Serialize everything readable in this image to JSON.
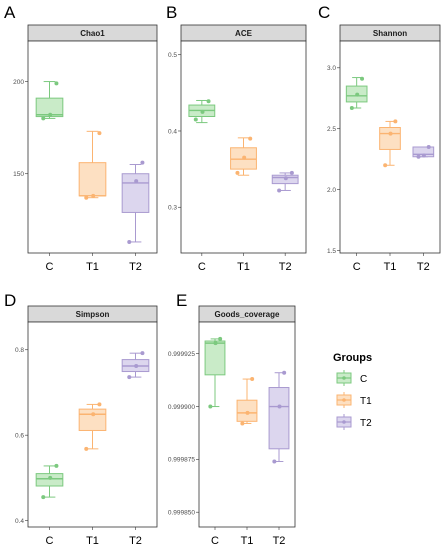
{
  "colors": {
    "C": "#7cc97f",
    "T1": "#fbb471",
    "T2": "#a99ad0",
    "C_fill": "#c9ebc8",
    "T1_fill": "#fde0c2",
    "T2_fill": "#dcd6ee",
    "strip_fill": "#d9d9d9",
    "frame": "#333333"
  },
  "legend": {
    "title": "Groups",
    "entries": [
      "C",
      "T1",
      "T2"
    ]
  },
  "chart_data": [
    {
      "type": "box",
      "panel": "A",
      "title": "Chao1",
      "categories": [
        "C",
        "T1",
        "T2"
      ],
      "yticks": [
        150,
        200
      ],
      "ytick_labels": [
        "150",
        "200"
      ],
      "ylim": [
        107,
        222
      ],
      "boxes": [
        {
          "group": "C",
          "min": 180,
          "q1": 181,
          "median": 182,
          "q3": 191,
          "max": 200
        },
        {
          "group": "T1",
          "min": 137,
          "q1": 138,
          "median": 138,
          "q3": 156,
          "max": 173
        },
        {
          "group": "T2",
          "min": 113,
          "q1": 129,
          "median": 145,
          "q3": 150,
          "max": 155
        }
      ],
      "points": {
        "C": [
          180,
          182,
          199
        ],
        "T1": [
          137,
          138,
          172
        ],
        "T2": [
          113,
          146,
          156
        ]
      }
    },
    {
      "type": "box",
      "panel": "B",
      "title": "ACE",
      "categories": [
        "C",
        "T1",
        "T2"
      ],
      "yticks": [
        0.3,
        0.4,
        0.5
      ],
      "ytick_labels": [
        "0.3",
        "0.4",
        "0.5"
      ],
      "ylim": [
        0.24,
        0.518
      ],
      "boxes": [
        {
          "group": "C",
          "min": 0.411,
          "q1": 0.419,
          "median": 0.427,
          "q3": 0.434,
          "max": 0.44
        },
        {
          "group": "T1",
          "min": 0.342,
          "q1": 0.35,
          "median": 0.363,
          "q3": 0.378,
          "max": 0.391
        },
        {
          "group": "T2",
          "min": 0.322,
          "q1": 0.331,
          "median": 0.339,
          "q3": 0.342,
          "max": 0.345
        }
      ],
      "points": {
        "C": [
          0.415,
          0.425,
          0.439
        ],
        "T1": [
          0.345,
          0.365,
          0.39
        ],
        "T2": [
          0.322,
          0.338,
          0.345
        ]
      }
    },
    {
      "type": "box",
      "panel": "C",
      "title": "Shannon",
      "categories": [
        "C",
        "T1",
        "T2"
      ],
      "yticks": [
        1.5,
        2.0,
        2.5,
        3.0
      ],
      "ytick_labels": [
        "1.5",
        "2.0",
        "2.5",
        "3.0"
      ],
      "ylim": [
        1.48,
        3.22
      ],
      "boxes": [
        {
          "group": "C",
          "min": 2.67,
          "q1": 2.72,
          "median": 2.77,
          "q3": 2.85,
          "max": 2.92
        },
        {
          "group": "T1",
          "min": 2.2,
          "q1": 2.33,
          "median": 2.46,
          "q3": 2.51,
          "max": 2.56
        },
        {
          "group": "T2",
          "min": 2.27,
          "q1": 2.27,
          "median": 2.29,
          "q3": 2.35,
          "max": 2.35
        }
      ],
      "points": {
        "C": [
          2.67,
          2.78,
          2.91
        ],
        "T1": [
          2.2,
          2.46,
          2.56
        ],
        "T2": [
          2.27,
          2.28,
          2.35
        ]
      }
    },
    {
      "type": "box",
      "panel": "D",
      "title": "Simpson",
      "categories": [
        "C",
        "T1",
        "T2"
      ],
      "yticks": [
        0.4,
        0.6,
        0.8
      ],
      "ytick_labels": [
        "0.4",
        "0.6",
        "0.8"
      ],
      "ylim": [
        0.385,
        0.865
      ],
      "boxes": [
        {
          "group": "C",
          "min": 0.455,
          "q1": 0.481,
          "median": 0.498,
          "q3": 0.51,
          "max": 0.528
        },
        {
          "group": "T1",
          "min": 0.568,
          "q1": 0.611,
          "median": 0.649,
          "q3": 0.661,
          "max": 0.672
        },
        {
          "group": "T2",
          "min": 0.736,
          "q1": 0.749,
          "median": 0.762,
          "q3": 0.777,
          "max": 0.792
        }
      ],
      "points": {
        "C": [
          0.455,
          0.5,
          0.528
        ],
        "T1": [
          0.568,
          0.649,
          0.672
        ],
        "T2": [
          0.736,
          0.762,
          0.792
        ]
      }
    },
    {
      "type": "box",
      "panel": "E",
      "title": "Goods_coverage",
      "categories": [
        "C",
        "T1",
        "T2"
      ],
      "yticks": [
        0.99985,
        0.999875,
        0.9999,
        0.999925
      ],
      "ytick_labels": [
        "0.999850",
        "0.999875",
        "0.999900",
        "0.999925"
      ],
      "ylim": [
        0.999843,
        0.99994
      ],
      "boxes": [
        {
          "group": "C",
          "min": 0.9999,
          "q1": 0.999915,
          "median": 0.99993,
          "q3": 0.999931,
          "max": 0.999932
        },
        {
          "group": "T1",
          "min": 0.999892,
          "q1": 0.999893,
          "median": 0.999897,
          "q3": 0.999903,
          "max": 0.999913
        },
        {
          "group": "T2",
          "min": 0.999874,
          "q1": 0.99988,
          "median": 0.9999,
          "q3": 0.999909,
          "max": 0.999916
        }
      ],
      "points": {
        "C": [
          0.9999,
          0.99993,
          0.999932
        ],
        "T1": [
          0.999892,
          0.999897,
          0.999913
        ],
        "T2": [
          0.999874,
          0.9999,
          0.999916
        ]
      }
    }
  ]
}
